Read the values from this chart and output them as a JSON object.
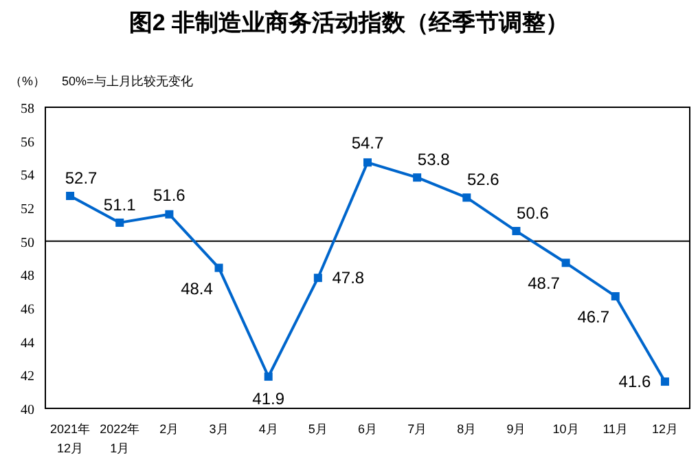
{
  "chart_data": {
    "type": "line",
    "title": "图2  非制造业商务活动指数（经季节调整）",
    "ylabel": "（%）",
    "annotations": [
      "50%=与上月比较无变化"
    ],
    "categories": [
      "2021年\n12月",
      "2022年\n1月",
      "2月",
      "3月",
      "4月",
      "5月",
      "6月",
      "7月",
      "8月",
      "9月",
      "10月",
      "11月",
      "12月"
    ],
    "series": [
      {
        "color": "#0066cc",
        "values": [
          52.7,
          51.1,
          51.6,
          48.4,
          41.9,
          47.8,
          54.7,
          53.8,
          52.6,
          50.6,
          48.7,
          46.7,
          41.6
        ]
      }
    ],
    "ylim": [
      40,
      58
    ],
    "yticks": [
      40,
      42,
      44,
      46,
      48,
      50,
      52,
      54,
      56,
      58
    ],
    "ref_lines": [
      {
        "axis": "y",
        "value": 50,
        "color": "#000000"
      }
    ],
    "data_labels": true,
    "marker": "square"
  }
}
